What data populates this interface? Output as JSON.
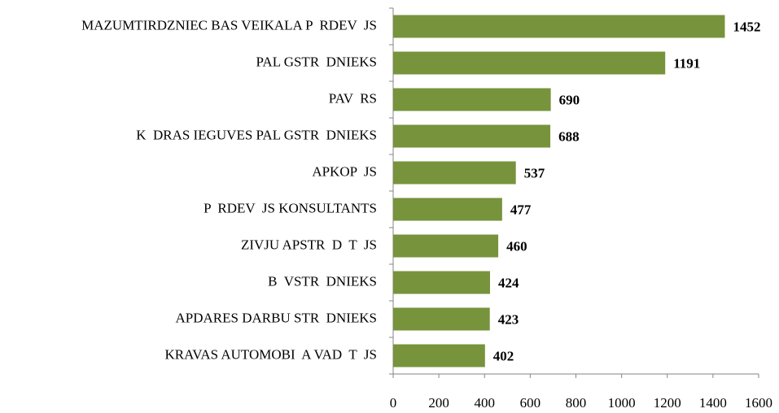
{
  "chart_data": {
    "type": "bar",
    "orientation": "horizontal",
    "categories": [
      "MAZUMTIRDZNIEC BAS VEIKALA P  RDEV  JS",
      "PAL GSTR  DNIEKS",
      "PAV  RS",
      "K  DRAS IEGUVES PAL GSTR  DNIEKS",
      "APKOP  JS",
      "P  RDEV  JS KONSULTANTS",
      "ZIVJU APSTR  D  T  JS",
      "B  VSTR  DNIEKS",
      "APDARES DARBU STR  DNIEKS",
      "KRAVAS AUTOMOBI  A VAD  T  JS"
    ],
    "values": [
      1452,
      1191,
      690,
      688,
      537,
      477,
      460,
      424,
      423,
      402
    ],
    "color": "#77933c",
    "xlim": [
      0,
      1600
    ],
    "xticks": [
      0,
      200,
      400,
      600,
      800,
      1000,
      1200,
      1400,
      1600
    ]
  }
}
